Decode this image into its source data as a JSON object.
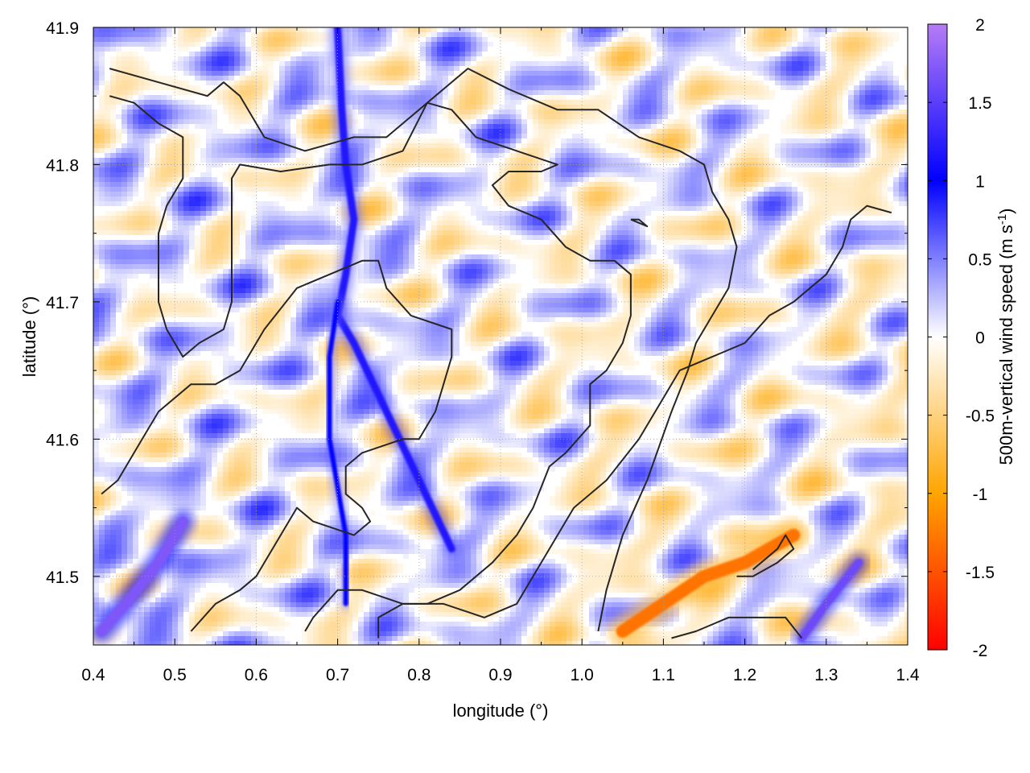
{
  "chart_data": {
    "type": "heatmap",
    "title": "",
    "xlabel": "longitude (°)",
    "ylabel": "latitude (°)",
    "xlim": [
      0.4,
      1.4
    ],
    "ylim": [
      41.45,
      41.9
    ],
    "x_ticks": [
      0.4,
      0.5,
      0.6,
      0.7,
      0.8,
      0.9,
      1.0,
      1.1,
      1.2,
      1.3,
      1.4
    ],
    "x_tick_labels": [
      "0.4",
      "0.5",
      "0.6",
      "0.7",
      "0.8",
      "0.9",
      "1.0",
      "1.1",
      "1.2",
      "1.3",
      "1.4"
    ],
    "y_ticks": [
      41.5,
      41.6,
      41.7,
      41.8,
      41.9
    ],
    "y_tick_labels": [
      "41.5",
      "41.6",
      "41.7",
      "41.8",
      "41.9"
    ],
    "grid": true,
    "colorbar": {
      "label_main": "500m-vertical wind speed (m s",
      "label_sup": "-1",
      "label_close": ")",
      "range": [
        -2,
        2
      ],
      "ticks": [
        2,
        1.5,
        1,
        0.5,
        0,
        -0.5,
        -1,
        -1.5,
        -2
      ],
      "tick_labels": [
        "2",
        "1.5",
        "1",
        "0.5",
        "0",
        "-0.5",
        "-1",
        "-1.5",
        "-2"
      ],
      "palette": [
        {
          "v": -2.0,
          "color": "#ff0000"
        },
        {
          "v": -1.0,
          "color": "#ffa500"
        },
        {
          "v": 0.0,
          "color": "#ffffff"
        },
        {
          "v": 1.0,
          "color": "#0000ff"
        },
        {
          "v": 2.0,
          "color": "#b57cf5"
        }
      ]
    },
    "features": {
      "main_updraft_ridge": [
        [
          0.7,
          41.9
        ],
        [
          0.705,
          41.84
        ],
        [
          0.71,
          41.8
        ],
        [
          0.72,
          41.76
        ],
        [
          0.71,
          41.72
        ],
        [
          0.7,
          41.69
        ],
        [
          0.72,
          41.67
        ],
        [
          0.76,
          41.62
        ],
        [
          0.8,
          41.57
        ],
        [
          0.84,
          41.52
        ]
      ],
      "secondary_updraft_ridge": [
        [
          0.7,
          41.7
        ],
        [
          0.69,
          41.66
        ],
        [
          0.69,
          41.6
        ],
        [
          0.71,
          41.53
        ],
        [
          0.71,
          41.48
        ]
      ],
      "sw_updraft": [
        [
          0.41,
          41.46
        ],
        [
          0.44,
          41.48
        ],
        [
          0.48,
          41.51
        ],
        [
          0.51,
          41.54
        ]
      ],
      "se_updraft": [
        [
          1.27,
          41.455
        ],
        [
          1.3,
          41.48
        ],
        [
          1.34,
          41.51
        ]
      ],
      "se_downdraft": [
        [
          1.05,
          41.46
        ],
        [
          1.1,
          41.48
        ],
        [
          1.15,
          41.5
        ],
        [
          1.2,
          41.51
        ],
        [
          1.26,
          41.53
        ]
      ]
    },
    "contours": [
      [
        [
          0.42,
          41.87
        ],
        [
          0.48,
          41.86
        ],
        [
          0.54,
          41.85
        ],
        [
          0.56,
          41.86
        ],
        [
          0.58,
          41.85
        ],
        [
          0.61,
          41.82
        ],
        [
          0.66,
          41.81
        ],
        [
          0.72,
          41.82
        ],
        [
          0.76,
          41.82
        ],
        [
          0.81,
          41.845
        ],
        [
          0.86,
          41.87
        ],
        [
          0.91,
          41.855
        ],
        [
          0.97,
          41.84
        ],
        [
          1.02,
          41.84
        ],
        [
          1.07,
          41.82
        ],
        [
          1.12,
          41.81
        ],
        [
          1.15,
          41.8
        ],
        [
          1.16,
          41.78
        ],
        [
          1.18,
          41.76
        ],
        [
          1.19,
          41.74
        ],
        [
          1.18,
          41.71
        ],
        [
          1.16,
          41.69
        ],
        [
          1.14,
          41.67
        ],
        [
          1.13,
          41.65
        ],
        [
          1.11,
          41.62
        ],
        [
          1.08,
          41.57
        ],
        [
          1.05,
          41.53
        ],
        [
          1.03,
          41.49
        ],
        [
          1.02,
          41.46
        ]
      ],
      [
        [
          0.42,
          41.85
        ],
        [
          0.45,
          41.845
        ],
        [
          0.48,
          41.83
        ],
        [
          0.51,
          41.82
        ],
        [
          0.51,
          41.79
        ],
        [
          0.49,
          41.77
        ],
        [
          0.48,
          41.75
        ],
        [
          0.48,
          41.72
        ],
        [
          0.48,
          41.7
        ],
        [
          0.49,
          41.68
        ],
        [
          0.51,
          41.66
        ],
        [
          0.53,
          41.67
        ],
        [
          0.56,
          41.68
        ],
        [
          0.57,
          41.7
        ],
        [
          0.57,
          41.75
        ],
        [
          0.57,
          41.79
        ],
        [
          0.58,
          41.8
        ],
        [
          0.63,
          41.795
        ],
        [
          0.69,
          41.8
        ],
        [
          0.73,
          41.8
        ],
        [
          0.78,
          41.81
        ],
        [
          0.81,
          41.845
        ],
        [
          0.84,
          41.84
        ],
        [
          0.87,
          41.82
        ],
        [
          0.92,
          41.81
        ],
        [
          0.97,
          41.8
        ],
        [
          0.95,
          41.795
        ],
        [
          0.91,
          41.795
        ],
        [
          0.89,
          41.785
        ],
        [
          0.91,
          41.77
        ],
        [
          0.95,
          41.76
        ],
        [
          0.98,
          41.74
        ],
        [
          1.01,
          41.73
        ],
        [
          1.04,
          41.73
        ],
        [
          1.06,
          41.72
        ],
        [
          1.06,
          41.69
        ],
        [
          1.05,
          41.67
        ],
        [
          1.03,
          41.65
        ],
        [
          1.01,
          41.64
        ],
        [
          1.01,
          41.61
        ],
        [
          0.98,
          41.59
        ],
        [
          0.96,
          41.58
        ],
        [
          0.94,
          41.55
        ],
        [
          0.92,
          41.53
        ],
        [
          0.89,
          41.51
        ],
        [
          0.85,
          41.49
        ],
        [
          0.81,
          41.48
        ],
        [
          0.78,
          41.48
        ],
        [
          0.73,
          41.49
        ],
        [
          0.7,
          41.49
        ],
        [
          0.67,
          41.47
        ],
        [
          0.66,
          41.46
        ]
      ],
      [
        [
          0.41,
          41.56
        ],
        [
          0.43,
          41.57
        ],
        [
          0.46,
          41.6
        ],
        [
          0.48,
          41.62
        ],
        [
          0.52,
          41.64
        ],
        [
          0.55,
          41.64
        ],
        [
          0.58,
          41.65
        ],
        [
          0.61,
          41.68
        ],
        [
          0.65,
          41.71
        ],
        [
          0.69,
          41.72
        ],
        [
          0.73,
          41.73
        ],
        [
          0.75,
          41.73
        ],
        [
          0.76,
          41.71
        ],
        [
          0.79,
          41.69
        ],
        [
          0.84,
          41.68
        ],
        [
          0.84,
          41.66
        ],
        [
          0.83,
          41.64
        ],
        [
          0.82,
          41.62
        ],
        [
          0.8,
          41.6
        ],
        [
          0.78,
          41.6
        ],
        [
          0.73,
          41.59
        ],
        [
          0.71,
          41.58
        ],
        [
          0.71,
          41.56
        ],
        [
          0.73,
          41.55
        ],
        [
          0.74,
          41.54
        ],
        [
          0.72,
          41.53
        ],
        [
          0.67,
          41.54
        ],
        [
          0.65,
          41.55
        ],
        [
          0.62,
          41.52
        ],
        [
          0.6,
          41.5
        ],
        [
          0.58,
          41.49
        ],
        [
          0.55,
          41.48
        ],
        [
          0.52,
          41.46
        ]
      ],
      [
        [
          0.75,
          41.455
        ],
        [
          0.75,
          41.47
        ],
        [
          0.78,
          41.48
        ],
        [
          0.83,
          41.48
        ],
        [
          0.88,
          41.47
        ],
        [
          0.92,
          41.48
        ],
        [
          0.96,
          41.52
        ],
        [
          0.99,
          41.55
        ],
        [
          1.03,
          41.57
        ],
        [
          1.07,
          41.6
        ],
        [
          1.1,
          41.63
        ],
        [
          1.12,
          41.65
        ],
        [
          1.16,
          41.66
        ],
        [
          1.2,
          41.67
        ],
        [
          1.23,
          41.69
        ],
        [
          1.26,
          41.7
        ],
        [
          1.28,
          41.71
        ],
        [
          1.3,
          41.72
        ],
        [
          1.32,
          41.74
        ],
        [
          1.33,
          41.76
        ],
        [
          1.35,
          41.77
        ],
        [
          1.38,
          41.765
        ]
      ],
      [
        [
          1.11,
          41.455
        ],
        [
          1.14,
          41.46
        ],
        [
          1.18,
          41.47
        ],
        [
          1.22,
          41.47
        ],
        [
          1.25,
          41.47
        ],
        [
          1.27,
          41.455
        ]
      ],
      [
        [
          1.19,
          41.5
        ],
        [
          1.21,
          41.5
        ],
        [
          1.24,
          41.51
        ],
        [
          1.26,
          41.52
        ],
        [
          1.25,
          41.53
        ],
        [
          1.24,
          41.52
        ],
        [
          1.21,
          41.505
        ]
      ],
      [
        [
          1.06,
          41.76
        ],
        [
          1.08,
          41.755
        ],
        [
          1.07,
          41.76
        ],
        [
          1.06,
          41.76
        ]
      ]
    ]
  }
}
